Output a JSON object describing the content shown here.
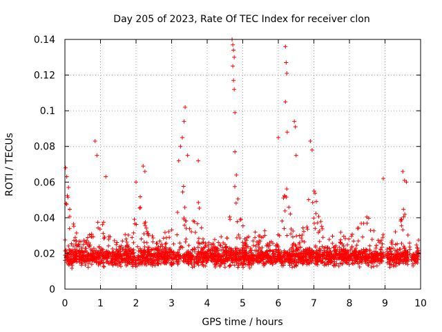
{
  "chart_data": {
    "type": "scatter",
    "title": "Day 205 of 2023, Rate Of TEC Index for receiver clon",
    "xlabel": "GPS time / hours",
    "ylabel": "ROTI / TECUs",
    "xlim": [
      0,
      10
    ],
    "ylim": [
      0,
      0.14
    ],
    "x_ticks": [
      0,
      1,
      2,
      3,
      4,
      5,
      6,
      7,
      8,
      9,
      10
    ],
    "x_tick_labels": [
      "0",
      "1",
      "2",
      "3",
      "4",
      "5",
      "6",
      "7",
      "8",
      "9",
      "10"
    ],
    "y_ticks": [
      0,
      0.02,
      0.04,
      0.06,
      0.08,
      0.1,
      0.12,
      0.14
    ],
    "y_tick_labels": [
      "0",
      "0.02",
      "0.04",
      "0.06",
      "0.08",
      "0.1",
      "0.12",
      "0.14"
    ],
    "grid": true,
    "marker": "+",
    "color": "#ff0000",
    "series": [
      {
        "name": "ROTI",
        "notable_points": [
          {
            "x": 0.02,
            "y": 0.068
          },
          {
            "x": 0.05,
            "y": 0.063
          },
          {
            "x": 0.1,
            "y": 0.057
          },
          {
            "x": 0.85,
            "y": 0.083
          },
          {
            "x": 0.9,
            "y": 0.075
          },
          {
            "x": 1.15,
            "y": 0.063
          },
          {
            "x": 2.2,
            "y": 0.069
          },
          {
            "x": 2.25,
            "y": 0.066
          },
          {
            "x": 2.0,
            "y": 0.06
          },
          {
            "x": 3.2,
            "y": 0.072
          },
          {
            "x": 3.25,
            "y": 0.08
          },
          {
            "x": 3.3,
            "y": 0.085
          },
          {
            "x": 3.35,
            "y": 0.094
          },
          {
            "x": 3.38,
            "y": 0.102
          },
          {
            "x": 3.45,
            "y": 0.075
          },
          {
            "x": 3.75,
            "y": 0.072
          },
          {
            "x": 4.7,
            "y": 0.14
          },
          {
            "x": 4.72,
            "y": 0.137
          },
          {
            "x": 4.74,
            "y": 0.134
          },
          {
            "x": 4.76,
            "y": 0.13
          },
          {
            "x": 4.72,
            "y": 0.125
          },
          {
            "x": 4.74,
            "y": 0.117
          },
          {
            "x": 4.76,
            "y": 0.112
          },
          {
            "x": 4.78,
            "y": 0.099
          },
          {
            "x": 4.78,
            "y": 0.077
          },
          {
            "x": 4.82,
            "y": 0.064
          },
          {
            "x": 6.0,
            "y": 0.085
          },
          {
            "x": 6.2,
            "y": 0.136
          },
          {
            "x": 6.22,
            "y": 0.127
          },
          {
            "x": 6.24,
            "y": 0.121
          },
          {
            "x": 6.2,
            "y": 0.105
          },
          {
            "x": 6.25,
            "y": 0.088
          },
          {
            "x": 6.45,
            "y": 0.094
          },
          {
            "x": 6.48,
            "y": 0.091
          },
          {
            "x": 6.5,
            "y": 0.075
          },
          {
            "x": 6.9,
            "y": 0.083
          },
          {
            "x": 6.95,
            "y": 0.078
          },
          {
            "x": 8.95,
            "y": 0.062
          },
          {
            "x": 9.5,
            "y": 0.066
          },
          {
            "x": 9.55,
            "y": 0.061
          },
          {
            "x": 9.6,
            "y": 0.06
          }
        ],
        "bulk_description_for_generation": {
          "x_range": [
            0,
            9.95
          ],
          "typical_y_range": [
            0.008,
            0.03
          ],
          "typical_center": 0.018,
          "sparse_gaps_hours": [
            [
              8.95,
              9.05
            ],
            [
              9.65,
              9.75
            ]
          ]
        }
      }
    ]
  }
}
